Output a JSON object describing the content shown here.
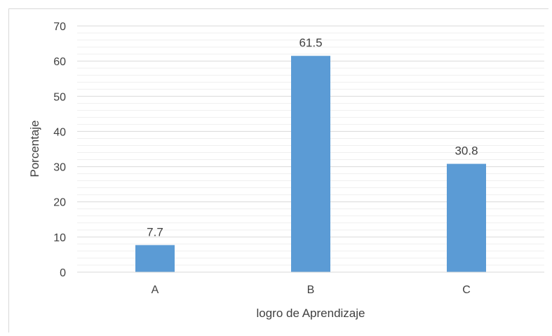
{
  "chart_data": {
    "type": "bar",
    "categories": [
      "A",
      "B",
      "C"
    ],
    "values": [
      7.7,
      61.5,
      30.8
    ],
    "data_labels": [
      "7.7",
      "61.5",
      "30.8"
    ],
    "xlabel": "logro de Aprendizaje",
    "ylabel": "Porcentaje",
    "ylim": [
      0,
      70
    ],
    "y_ticks": [
      "0",
      "10",
      "20",
      "30",
      "40",
      "50",
      "60",
      "70"
    ],
    "grid": true,
    "minor_grid": true,
    "bar_color": "#5b9bd5",
    "grid_color": "#d9d9d9",
    "text_color": "#404040"
  }
}
